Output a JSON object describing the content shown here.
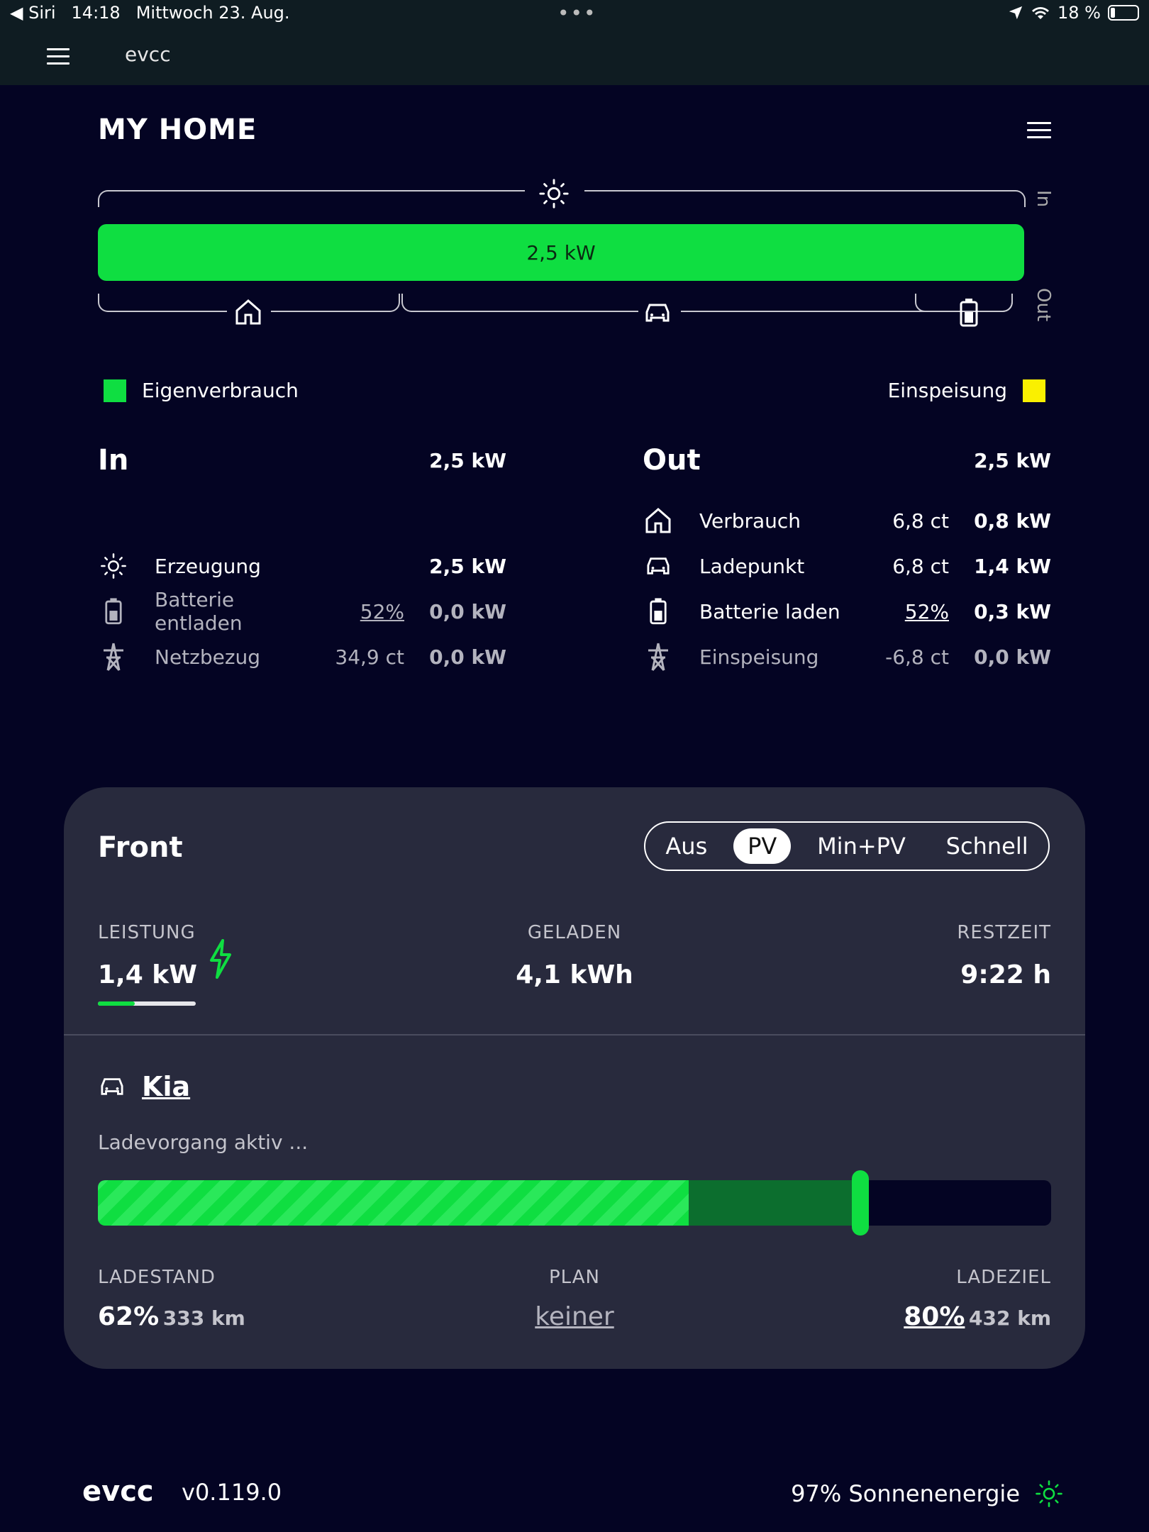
{
  "status_bar": {
    "back_label": "◀ Siri",
    "time": "14:18",
    "date": "Mittwoch 23. Aug.",
    "battery": "18 %"
  },
  "app_bar": {
    "title": "evcc"
  },
  "home": {
    "title": "MY HOME"
  },
  "flow": {
    "bar_value": "2,5 kW",
    "in_label": "In",
    "out_label": "Out"
  },
  "legend": {
    "self": "Eigenverbrauch",
    "feed": "Einspeisung",
    "self_color": "#0fde41",
    "feed_color": "#faf000"
  },
  "in_col": {
    "title": "In",
    "total": "2,5 kW",
    "rows": [
      {
        "label": "Erzeugung",
        "mid": "",
        "kw": "2,5 kW"
      },
      {
        "label": "Batterie entladen",
        "mid": "52%",
        "kw": "0,0 kW"
      },
      {
        "label": "Netzbezug",
        "mid": "34,9 ct",
        "kw": "0,0 kW"
      }
    ]
  },
  "out_col": {
    "title": "Out",
    "total": "2,5 kW",
    "rows": [
      {
        "label": "Verbrauch",
        "mid": "6,8 ct",
        "kw": "0,8 kW"
      },
      {
        "label": "Ladepunkt",
        "mid": "6,8 ct",
        "kw": "1,4 kW"
      },
      {
        "label": "Batterie laden",
        "mid": "52%",
        "kw": "0,3 kW"
      },
      {
        "label": "Einspeisung",
        "mid": "-6,8 ct",
        "kw": "0,0 kW"
      }
    ]
  },
  "loadpoint": {
    "title": "Front",
    "modes": [
      "Aus",
      "PV",
      "Min+PV",
      "Schnell"
    ],
    "active_mode": "PV",
    "power_label": "LEISTUNG",
    "power_value": "1,4 kW",
    "charged_label": "GELADEN",
    "charged_value": "4,1 kWh",
    "remaining_label": "RESTZEIT",
    "remaining_value": "9:22 h",
    "vehicle": "Kia",
    "status": "Ladevorgang aktiv ...",
    "soc_percent": 62,
    "target_percent": 80,
    "soc_label": "LADESTAND",
    "soc_value": "62%",
    "soc_range": "333 km",
    "plan_label": "PLAN",
    "plan_value": "keiner",
    "target_label": "LADEZIEL",
    "target_value": "80%",
    "target_range": "432 km"
  },
  "footer": {
    "logo": "evcc",
    "version": "v0.119.0",
    "solar": "97% Sonnenenergie"
  }
}
